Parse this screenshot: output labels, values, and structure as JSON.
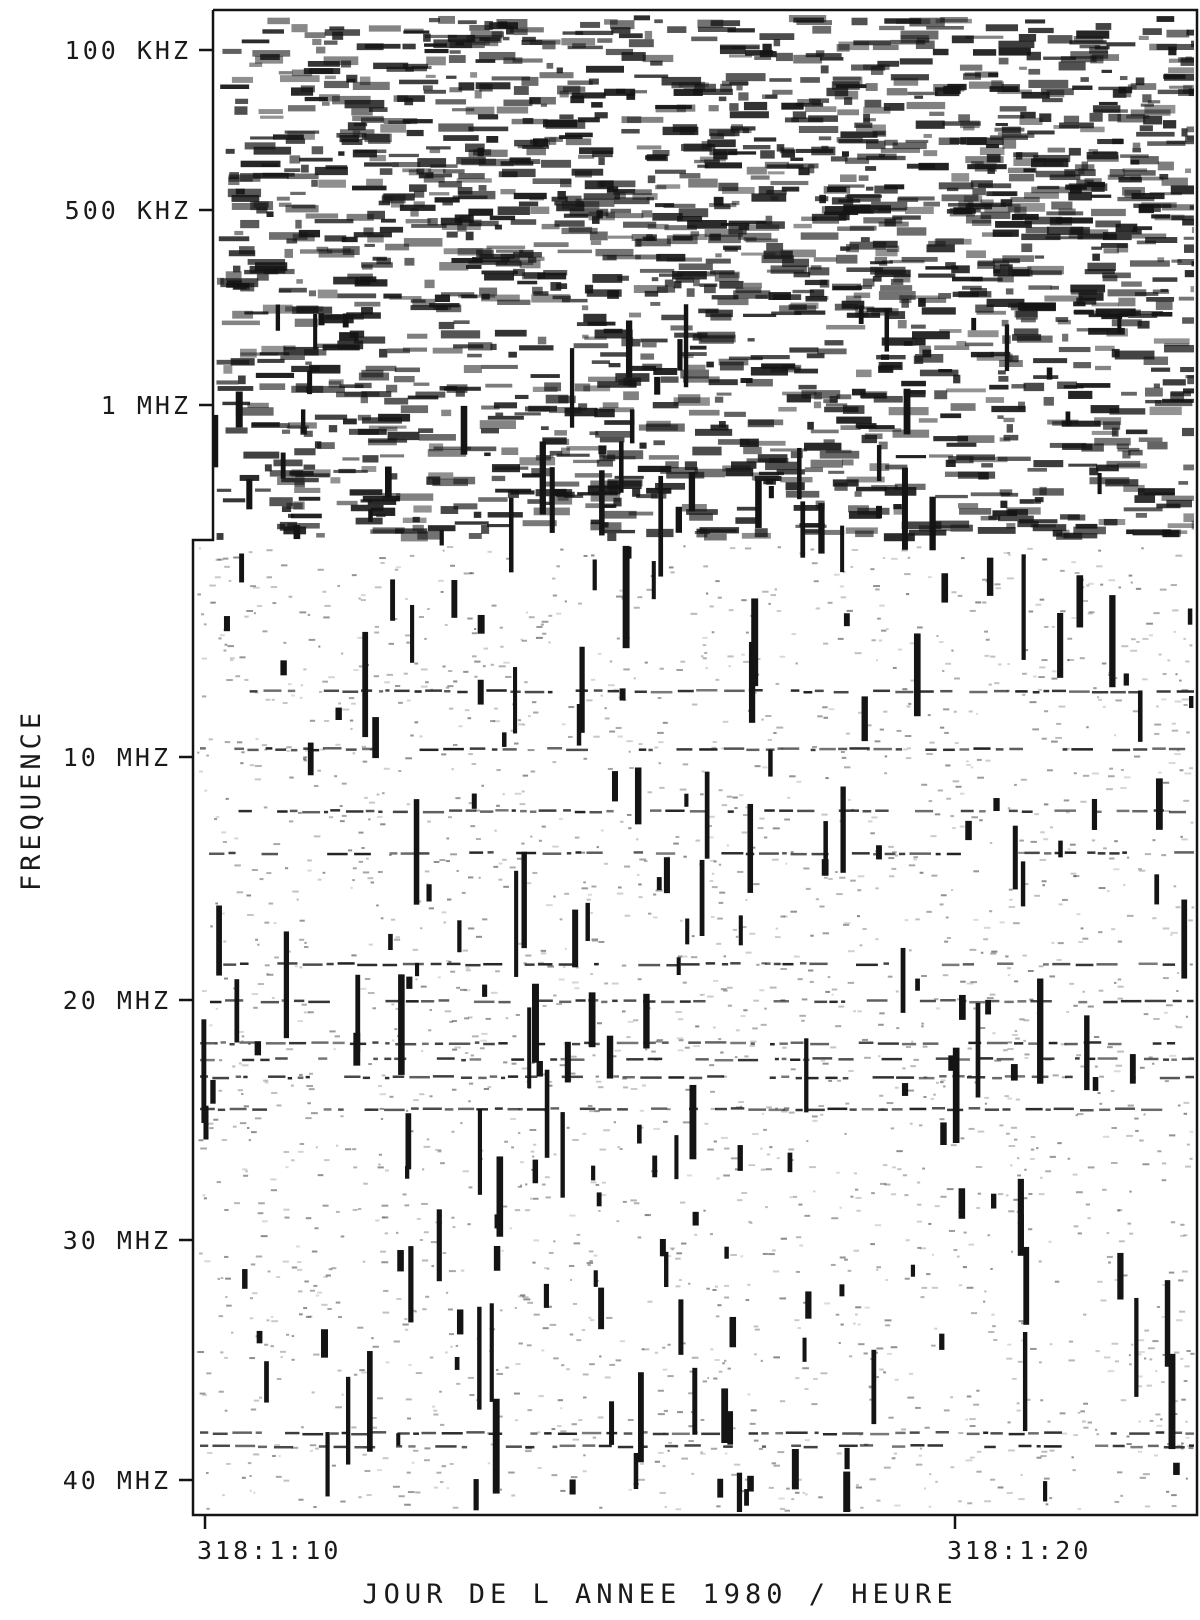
{
  "chart_data": {
    "type": "heatmap",
    "ylabel": "FREQUENCE",
    "xlabel": "JOUR DE L ANNEE 1980 / HEURE",
    "y_ticks": [
      {
        "label": "100 KHZ",
        "freq_mhz": 0.1
      },
      {
        "label": "500 KHZ",
        "freq_mhz": 0.5
      },
      {
        "label": "1 MHZ",
        "freq_mhz": 1
      },
      {
        "label": "10 MHZ",
        "freq_mhz": 10
      },
      {
        "label": "20 MHZ",
        "freq_mhz": 20
      },
      {
        "label": "30 MHZ",
        "freq_mhz": 30
      },
      {
        "label": "40 MHZ",
        "freq_mhz": 40
      }
    ],
    "x_ticks": [
      {
        "label": "318:1:10",
        "minute": 10
      },
      {
        "label": "318:1:20",
        "minute": 20
      }
    ],
    "xlim_minutes": [
      10,
      23
    ],
    "colors": {
      "ink": "#141414",
      "paper": "#ffffff"
    }
  }
}
